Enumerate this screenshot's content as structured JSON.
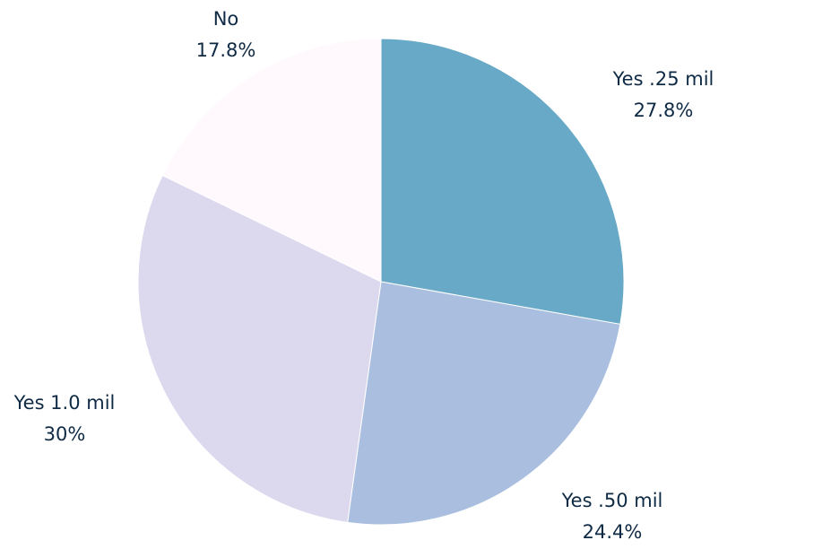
{
  "chart_data": {
    "type": "pie",
    "title": "",
    "slices": [
      {
        "label": "Yes .25 mil",
        "value": 27.8,
        "value_label": "27.8%",
        "color": "#67a9c6"
      },
      {
        "label": "Yes .50 mil",
        "value": 24.4,
        "value_label": "24.4%",
        "color": "#aabfdf"
      },
      {
        "label": "Yes 1.0 mil",
        "value": 30,
        "value_label": "30%",
        "color": "#dcd9ef"
      },
      {
        "label": "No",
        "value": 17.8,
        "value_label": "17.8%",
        "color": "#fff8fd"
      }
    ],
    "start_angle": "12 o'clock",
    "direction": "clockwise",
    "legend": "none",
    "label_color": "#0f2a44"
  }
}
